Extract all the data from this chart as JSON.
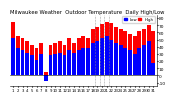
{
  "title": "Milwaukee Weather  Outdoor Temperature  Daily High/Low",
  "title_fontsize": 3.8,
  "background_color": "#ffffff",
  "high_color": "#ff0000",
  "low_color": "#0000ff",
  "legend_high": "High",
  "legend_low": "Low",
  "x_labels": [
    "1",
    "2",
    "3",
    "4",
    "5",
    "6",
    "7",
    "8",
    "9",
    "10",
    "11",
    "12",
    "13",
    "14",
    "15",
    "16",
    "17",
    "18",
    "19",
    "20",
    "21",
    "22",
    "23",
    "24",
    "25",
    "26",
    "27",
    "28",
    "29",
    "30",
    "31"
  ],
  "highs": [
    75,
    55,
    52,
    48,
    42,
    38,
    45,
    5,
    42,
    45,
    48,
    42,
    52,
    45,
    52,
    55,
    52,
    65,
    68,
    72,
    75,
    73,
    68,
    65,
    62,
    58,
    55,
    62,
    65,
    70,
    62
  ],
  "lows": [
    52,
    38,
    35,
    32,
    28,
    22,
    30,
    -8,
    28,
    30,
    32,
    28,
    35,
    32,
    35,
    38,
    38,
    45,
    48,
    52,
    55,
    50,
    45,
    42,
    38,
    35,
    30,
    38,
    42,
    48,
    18
  ],
  "ylim": [
    -15,
    85
  ],
  "ylabel_fontsize": 3.2,
  "xlabel_fontsize": 2.8,
  "yticks": [
    -10,
    0,
    10,
    20,
    30,
    40,
    50,
    60,
    70,
    80
  ],
  "ytick_labels": [
    "-10",
    "0",
    "10",
    "20",
    "30",
    "40",
    "50",
    "60",
    "70",
    "80"
  ],
  "vline_positions": [
    17.5,
    18.5,
    19.5,
    20.5
  ],
  "bar_width": 0.38
}
